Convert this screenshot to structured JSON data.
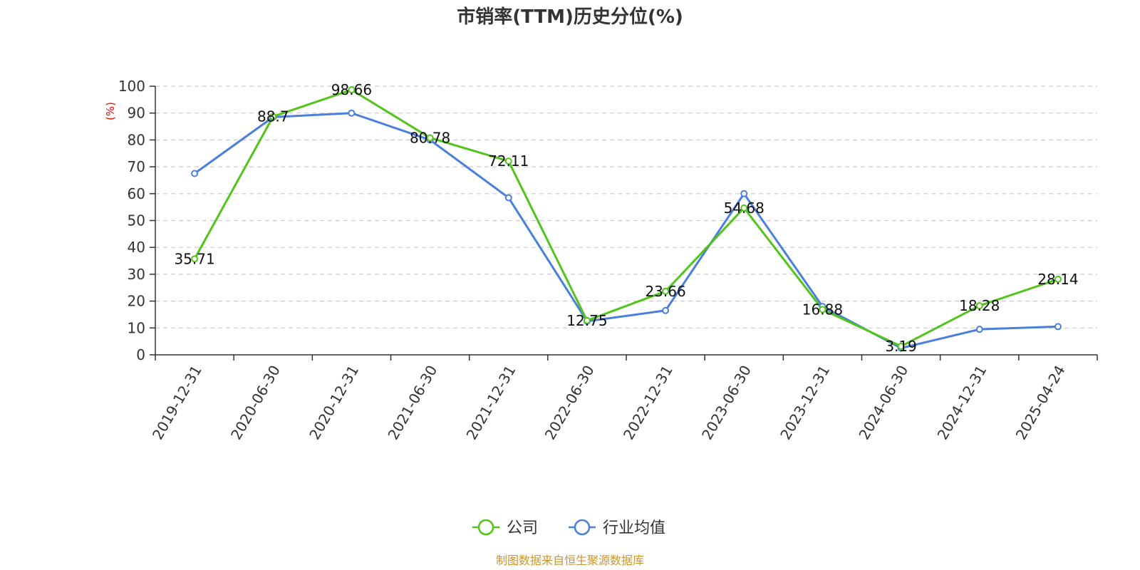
{
  "chart_data": {
    "type": "line",
    "title": "市销率(TTM)历史分位(%)",
    "ylabel": "(%)",
    "ylim": [
      0,
      100
    ],
    "yticks": [
      0,
      10,
      20,
      30,
      40,
      50,
      60,
      70,
      80,
      90,
      100
    ],
    "categories": [
      "2019-12-31",
      "2020-06-30",
      "2020-12-31",
      "2021-06-30",
      "2021-12-31",
      "2022-06-30",
      "2022-12-31",
      "2023-06-30",
      "2023-12-31",
      "2024-06-30",
      "2024-12-31",
      "2025-04-24"
    ],
    "series": [
      {
        "name": "公司",
        "color": "#52c41a",
        "values": [
          35.71,
          88.7,
          98.66,
          80.78,
          72.11,
          12.75,
          23.66,
          54.68,
          16.88,
          3.19,
          18.28,
          28.14
        ],
        "labels": [
          "35.71",
          "88.7",
          "98.66",
          "80.78",
          "72.11",
          "12.75",
          "23.66",
          "54.68",
          "16.88",
          "3.19",
          "18.28",
          "28.14"
        ]
      },
      {
        "name": "行业均值",
        "color": "#4a7fdc",
        "values": [
          67.5,
          88.5,
          90.0,
          80.0,
          58.5,
          12.5,
          16.5,
          60.0,
          18.0,
          2.5,
          9.5,
          10.5
        ]
      }
    ],
    "grid": true,
    "legend_position": "bottom-center",
    "axis_label_color": "#ff0000"
  },
  "source": {
    "text": "制图数据来自恒生聚源数据库",
    "color": "#c8952c"
  }
}
